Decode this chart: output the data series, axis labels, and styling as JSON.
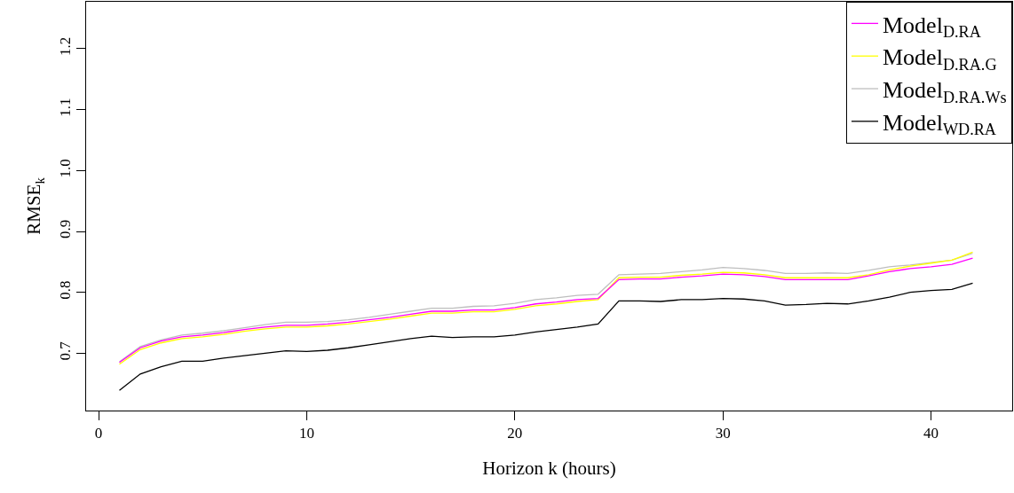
{
  "chart_data": {
    "type": "line",
    "xlabel": "Horizon k (hours)",
    "ylabel": "RMSE$_{k}$",
    "x": [
      1,
      2,
      3,
      4,
      5,
      6,
      7,
      8,
      9,
      10,
      11,
      12,
      13,
      14,
      15,
      16,
      17,
      18,
      19,
      20,
      21,
      22,
      23,
      24,
      25,
      26,
      27,
      28,
      29,
      30,
      31,
      32,
      33,
      34,
      35,
      36,
      37,
      38,
      39,
      40,
      41,
      42
    ],
    "series": [
      {
        "name": "Model$_{D.RA}$",
        "color": "#ff00ff",
        "values": [
          0.685,
          0.709,
          0.72,
          0.727,
          0.73,
          0.734,
          0.739,
          0.743,
          0.746,
          0.746,
          0.748,
          0.751,
          0.755,
          0.759,
          0.764,
          0.769,
          0.769,
          0.771,
          0.771,
          0.775,
          0.781,
          0.784,
          0.788,
          0.79,
          0.821,
          0.822,
          0.822,
          0.825,
          0.827,
          0.83,
          0.829,
          0.826,
          0.821,
          0.821,
          0.821,
          0.821,
          0.827,
          0.834,
          0.839,
          0.842,
          0.846,
          0.856
        ]
      },
      {
        "name": "Model$_{D.RA.G}$",
        "color": "#ffff00",
        "values": [
          0.682,
          0.706,
          0.717,
          0.724,
          0.727,
          0.731,
          0.736,
          0.74,
          0.743,
          0.743,
          0.745,
          0.748,
          0.752,
          0.756,
          0.761,
          0.766,
          0.766,
          0.768,
          0.768,
          0.772,
          0.778,
          0.781,
          0.785,
          0.788,
          0.824,
          0.825,
          0.825,
          0.828,
          0.83,
          0.833,
          0.832,
          0.829,
          0.824,
          0.824,
          0.824,
          0.824,
          0.829,
          0.837,
          0.843,
          0.848,
          0.853,
          0.866
        ]
      },
      {
        "name": "Model$_{D.RA.Ws}$",
        "color": "#bebebe",
        "values": [
          0.686,
          0.711,
          0.722,
          0.73,
          0.733,
          0.737,
          0.742,
          0.747,
          0.751,
          0.751,
          0.752,
          0.755,
          0.759,
          0.764,
          0.769,
          0.774,
          0.774,
          0.777,
          0.778,
          0.782,
          0.788,
          0.791,
          0.795,
          0.797,
          0.829,
          0.83,
          0.831,
          0.834,
          0.837,
          0.841,
          0.839,
          0.836,
          0.831,
          0.831,
          0.832,
          0.831,
          0.836,
          0.842,
          0.845,
          0.849,
          0.853,
          0.864
        ]
      },
      {
        "name": "Model$_{WD.RA}$",
        "color": "#000000",
        "values": [
          0.639,
          0.666,
          0.678,
          0.687,
          0.687,
          0.692,
          0.696,
          0.7,
          0.704,
          0.703,
          0.705,
          0.709,
          0.714,
          0.719,
          0.724,
          0.728,
          0.726,
          0.727,
          0.727,
          0.73,
          0.735,
          0.739,
          0.743,
          0.748,
          0.786,
          0.786,
          0.785,
          0.788,
          0.788,
          0.79,
          0.789,
          0.786,
          0.779,
          0.78,
          0.782,
          0.781,
          0.786,
          0.792,
          0.8,
          0.803,
          0.805,
          0.815
        ]
      }
    ],
    "xlim": [
      -0.6,
      43.9
    ],
    "ylim": [
      0.606,
      1.277
    ],
    "xticks": [
      0,
      10,
      20,
      30,
      40
    ],
    "yticks": [
      0.7,
      0.8,
      0.9,
      {
        "value": 1,
        "label": "1.0"
      },
      1.1,
      1.2
    ],
    "legend": "top right",
    "marker": "none",
    "line_style": "solid"
  }
}
